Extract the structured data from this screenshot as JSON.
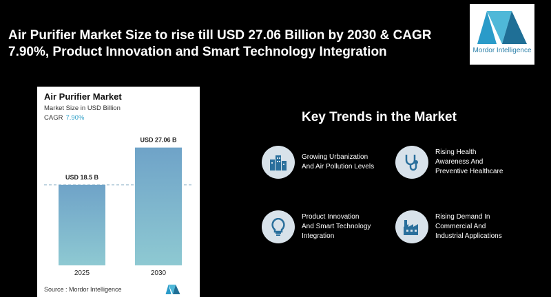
{
  "headline": "Air Purifier Market Size to rise till USD 27.06 Billion by 2030 & CAGR 7.90%, Product Innovation and Smart Technology Integration",
  "logo": {
    "text": "Mordor Intelligence"
  },
  "chart_data": {
    "type": "bar",
    "title": "Air Purifier Market",
    "subtitle": "Market Size in USD Billion",
    "cagr_label": "CAGR",
    "cagr_value": "7.90%",
    "categories": [
      "2025",
      "2030"
    ],
    "values": [
      18.5,
      27.06
    ],
    "data_labels": [
      "USD 18.5 B",
      "USD 27.06 B"
    ],
    "ylim": [
      0,
      30
    ],
    "reference_line": 18.5,
    "colors": {
      "bar_top": "#6fa3c8",
      "bar_bottom": "#8ec9d2",
      "dashed_line": "#8fb3c8"
    }
  },
  "source": "Source : Mordor Intelligence",
  "trends": {
    "title": "Key Trends in the Market",
    "items": [
      {
        "label": "Growing Urbanization\nAnd Air Pollution Levels",
        "icon": "city-buildings-icon"
      },
      {
        "label": "Rising Health\nAwareness And\nPreventive Healthcare",
        "icon": "stethoscope-icon"
      },
      {
        "label": "Product Innovation\nAnd Smart Technology\nIntegration",
        "icon": "lightbulb-icon"
      },
      {
        "label": "Rising Demand In\nCommercial And\nIndustrial Applications",
        "icon": "factory-icon"
      }
    ]
  }
}
